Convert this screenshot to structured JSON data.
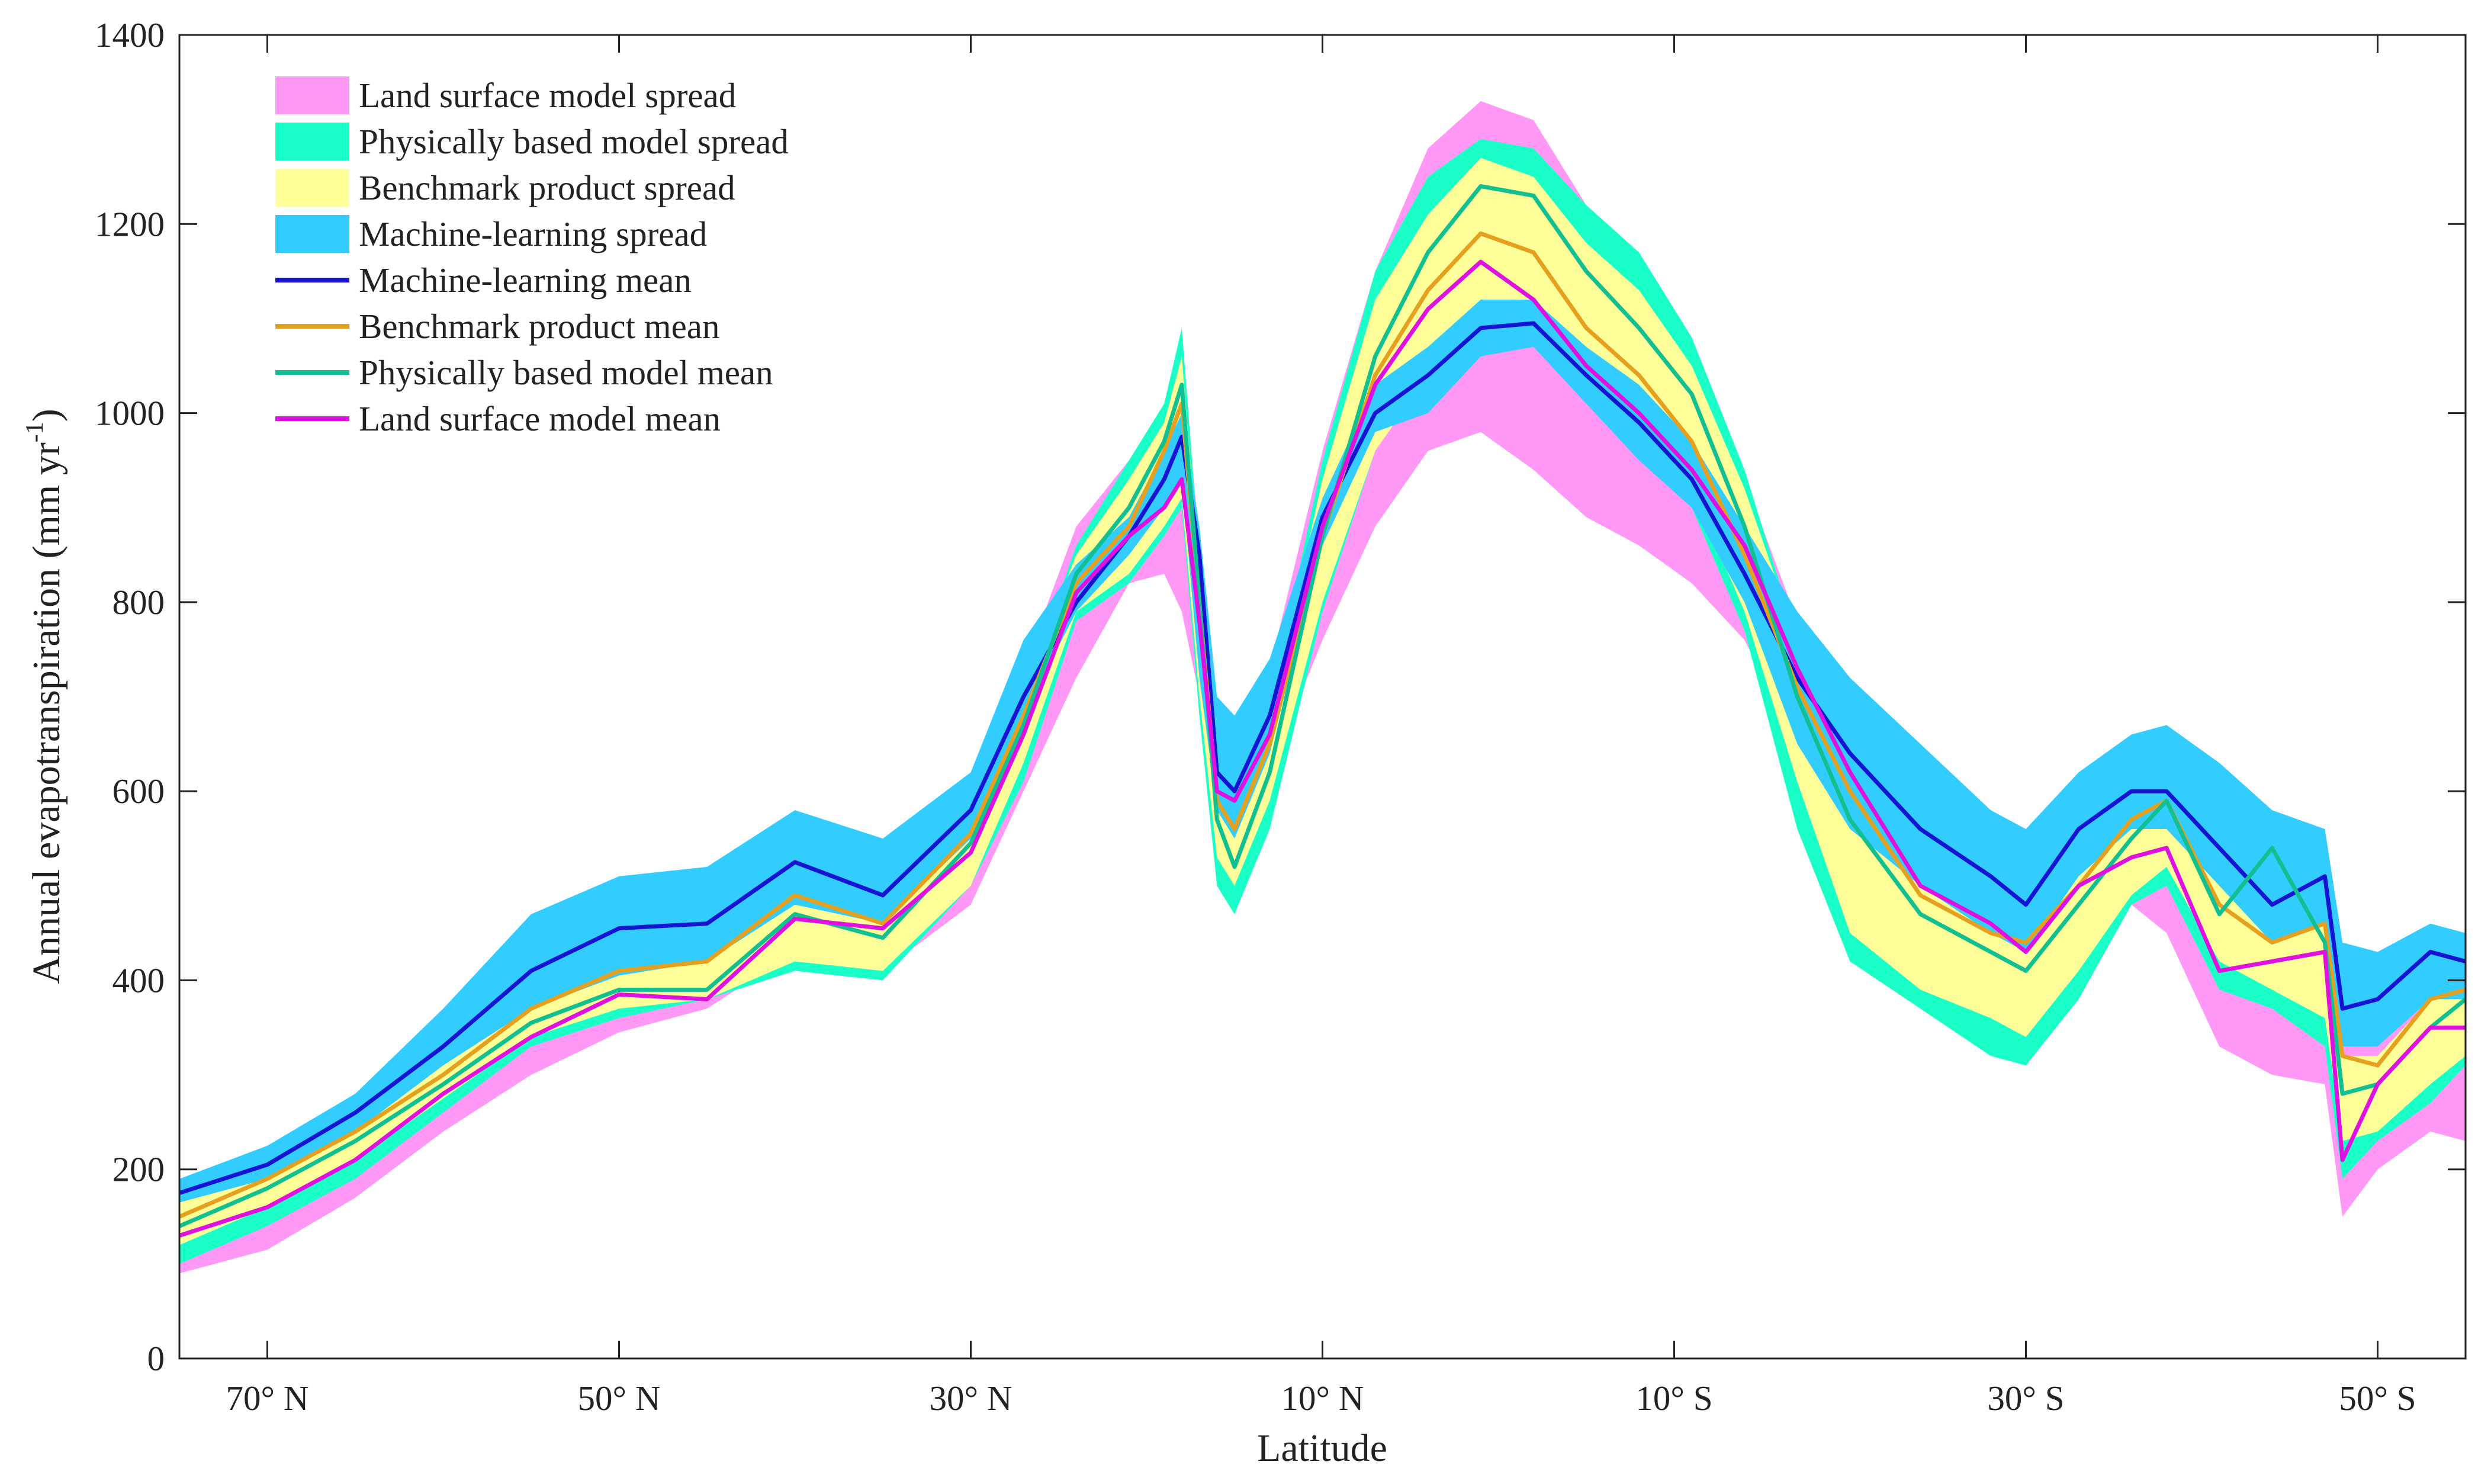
{
  "chart_data": {
    "type": "line",
    "x_label": "Latitude",
    "y_label": {
      "text": "Annual evapotranspiration (mm yr",
      "sup": "-1",
      "close": ")"
    },
    "x": [
      75,
      70,
      65,
      60,
      55,
      50,
      45,
      40,
      35,
      30,
      27,
      24,
      21,
      19,
      18,
      17,
      16,
      15,
      13,
      10,
      7,
      4,
      1,
      -2,
      -5,
      -8,
      -11,
      -14,
      -17,
      -20,
      -24,
      -28,
      -30,
      -33,
      -36,
      -38,
      -41,
      -44,
      -47,
      -48,
      -50,
      -53,
      -55
    ],
    "xlim": [
      75,
      -55
    ],
    "xticks": [
      {
        "value": 70,
        "label": "70° N"
      },
      {
        "value": 50,
        "label": "50° N"
      },
      {
        "value": 30,
        "label": "30° N"
      },
      {
        "value": 10,
        "label": "10° N"
      },
      {
        "value": -10,
        "label": "10° S"
      },
      {
        "value": -30,
        "label": "30° S"
      },
      {
        "value": -50,
        "label": "50° S"
      }
    ],
    "ylim": [
      0,
      1400
    ],
    "yticks": [
      0,
      200,
      400,
      600,
      800,
      1000,
      1200,
      1400
    ],
    "legend": "upper left",
    "bands": [
      {
        "name": "Land surface model spread",
        "color": "#ff99f5",
        "lower": [
          90,
          115,
          170,
          240,
          300,
          345,
          370,
          430,
          410,
          480,
          600,
          720,
          820,
          830,
          790,
          700,
          560,
          520,
          620,
          760,
          880,
          960,
          980,
          940,
          890,
          860,
          820,
          760,
          650,
          500,
          400,
          370,
          340,
          380,
          480,
          450,
          330,
          300,
          290,
          150,
          200,
          240,
          230
        ],
        "upper": [
          170,
          215,
          275,
          350,
          430,
          480,
          470,
          540,
          510,
          600,
          730,
          880,
          950,
          1000,
          1050,
          870,
          650,
          630,
          730,
          960,
          1150,
          1280,
          1330,
          1310,
          1220,
          1120,
          1010,
          930,
          780,
          650,
          560,
          510,
          480,
          520,
          560,
          560,
          460,
          450,
          470,
          340,
          330,
          380,
          450
        ]
      },
      {
        "name": "Physically based model spread",
        "color": "#1affc8",
        "lower": [
          100,
          140,
          190,
          260,
          330,
          360,
          380,
          410,
          400,
          500,
          610,
          780,
          820,
          870,
          900,
          680,
          500,
          470,
          560,
          790,
          960,
          1060,
          1100,
          1100,
          1040,
          970,
          900,
          770,
          560,
          420,
          370,
          320,
          310,
          380,
          480,
          500,
          390,
          370,
          330,
          190,
          230,
          270,
          310
        ],
        "upper": [
          160,
          210,
          260,
          320,
          390,
          420,
          420,
          490,
          470,
          570,
          700,
          860,
          950,
          1010,
          1090,
          850,
          640,
          580,
          690,
          950,
          1150,
          1250,
          1290,
          1280,
          1220,
          1170,
          1080,
          940,
          760,
          630,
          530,
          480,
          450,
          520,
          580,
          610,
          510,
          580,
          480,
          320,
          320,
          380,
          400
        ]
      },
      {
        "name": "Benchmark product spread",
        "color": "#ffff99",
        "lower": [
          120,
          160,
          210,
          275,
          340,
          370,
          380,
          420,
          410,
          500,
          630,
          790,
          830,
          880,
          910,
          700,
          530,
          500,
          590,
          800,
          960,
          1040,
          1090,
          1090,
          1040,
          980,
          920,
          790,
          610,
          450,
          390,
          360,
          340,
          410,
          490,
          520,
          420,
          390,
          360,
          230,
          240,
          290,
          320
        ],
        "upper": [
          180,
          220,
          275,
          340,
          400,
          430,
          440,
          510,
          480,
          580,
          710,
          850,
          930,
          990,
          1060,
          830,
          620,
          590,
          680,
          930,
          1120,
          1210,
          1270,
          1250,
          1180,
          1130,
          1050,
          920,
          760,
          640,
          540,
          490,
          460,
          520,
          580,
          620,
          520,
          540,
          480,
          320,
          320,
          380,
          400
        ]
      },
      {
        "name": "Machine-learning spread",
        "color": "#33ccff",
        "lower": [
          165,
          190,
          240,
          310,
          370,
          405,
          420,
          480,
          460,
          550,
          680,
          790,
          850,
          900,
          930,
          720,
          580,
          550,
          640,
          860,
          980,
          1000,
          1060,
          1070,
          1010,
          950,
          900,
          800,
          650,
          560,
          500,
          450,
          430,
          510,
          560,
          560,
          500,
          440,
          460,
          330,
          330,
          380,
          380
        ],
        "upper": [
          190,
          225,
          280,
          370,
          470,
          510,
          520,
          580,
          550,
          620,
          760,
          840,
          890,
          960,
          1000,
          880,
          700,
          680,
          740,
          910,
          1030,
          1070,
          1120,
          1120,
          1070,
          1030,
          970,
          880,
          790,
          720,
          650,
          580,
          560,
          620,
          660,
          670,
          630,
          580,
          560,
          440,
          430,
          460,
          450
        ]
      }
    ],
    "series": [
      {
        "name": "Machine-learning mean",
        "color": "#1414d2",
        "values": [
          175,
          205,
          260,
          330,
          410,
          455,
          460,
          525,
          490,
          580,
          700,
          800,
          870,
          930,
          975,
          850,
          620,
          600,
          680,
          890,
          1000,
          1040,
          1090,
          1095,
          1040,
          990,
          930,
          830,
          720,
          640,
          560,
          510,
          480,
          560,
          600,
          600,
          540,
          480,
          510,
          370,
          380,
          430,
          420
        ]
      },
      {
        "name": "Benchmark product mean",
        "color": "#e6a020",
        "values": [
          150,
          190,
          240,
          300,
          370,
          410,
          420,
          490,
          460,
          555,
          680,
          820,
          880,
          960,
          1010,
          800,
          590,
          560,
          650,
          870,
          1040,
          1130,
          1190,
          1170,
          1090,
          1040,
          970,
          850,
          710,
          600,
          490,
          450,
          440,
          500,
          570,
          590,
          480,
          440,
          460,
          320,
          310,
          380,
          390
        ]
      },
      {
        "name": "Physically based model mean",
        "color": "#10c090",
        "values": [
          140,
          180,
          230,
          290,
          355,
          390,
          390,
          470,
          445,
          545,
          670,
          830,
          900,
          970,
          1030,
          800,
          570,
          520,
          620,
          870,
          1060,
          1170,
          1240,
          1230,
          1150,
          1090,
          1020,
          880,
          700,
          570,
          470,
          430,
          410,
          480,
          550,
          590,
          470,
          540,
          440,
          280,
          290,
          350,
          380
        ]
      },
      {
        "name": "Land surface model mean",
        "color": "#e010e0",
        "values": [
          130,
          160,
          210,
          280,
          340,
          385,
          380,
          465,
          455,
          535,
          660,
          810,
          870,
          900,
          930,
          780,
          600,
          590,
          660,
          880,
          1030,
          1110,
          1160,
          1120,
          1050,
          1000,
          940,
          860,
          730,
          620,
          500,
          460,
          430,
          500,
          530,
          540,
          410,
          420,
          430,
          210,
          290,
          350,
          350
        ]
      }
    ]
  }
}
